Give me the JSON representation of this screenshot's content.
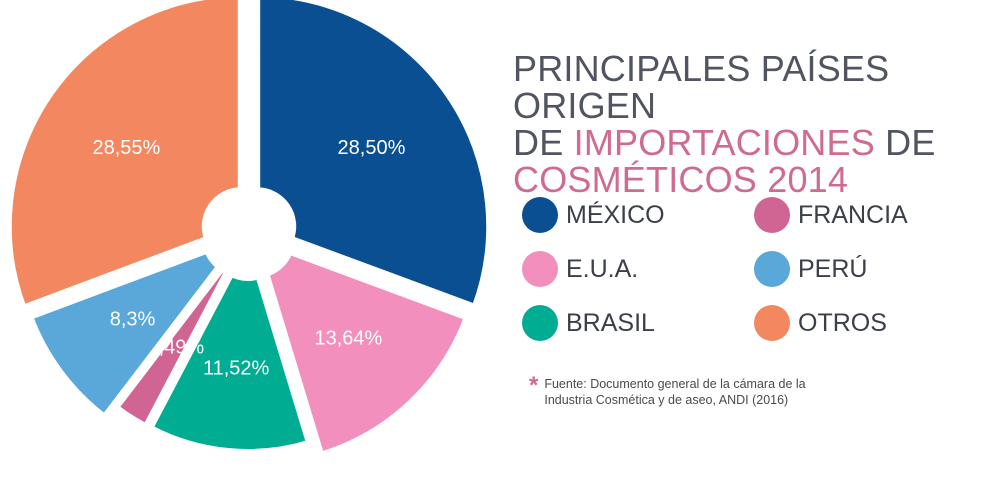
{
  "title": {
    "line1": "PRINCIPALES PAÍSES ORIGEN",
    "line2_prefix": "DE ",
    "line2_highlight": "IMPORTACIONES",
    "line2_suffix": " DE",
    "line3_highlight": "COSMÉTICOS 2014"
  },
  "legend": [
    {
      "label": "MÉXICO",
      "color": "#0b4f93"
    },
    {
      "label": "FRANCIA",
      "color": "#d06493"
    },
    {
      "label": "E.U.A.",
      "color": "#f28fbc"
    },
    {
      "label": "PERÚ",
      "color": "#5aa7da"
    },
    {
      "label": "BRASIL",
      "color": "#00ad93"
    },
    {
      "label": "OTROS",
      "color": "#f3875f"
    }
  ],
  "source": {
    "star": "*",
    "text": "Fuente: Documento general de la cámara de la Industria Cosmética y de aseo, ANDI (2016)"
  },
  "chart_data": {
    "type": "pie",
    "title": "PRINCIPALES PAÍSES ORIGEN DE IMPORTACIONES DE COSMÉTICOS 2014",
    "slices": [
      {
        "name": "MÉXICO",
        "value": 28.5,
        "label": "28,50%",
        "color": "#0b4f93"
      },
      {
        "name": "E.U.A.",
        "value": 13.64,
        "label": "13,64%",
        "color": "#f28fbc"
      },
      {
        "name": "BRASIL",
        "value": 11.52,
        "label": "11,52%",
        "color": "#00ad93"
      },
      {
        "name": "FRANCIA",
        "value": 2.49,
        "label": "2,49%",
        "color": "#d06493"
      },
      {
        "name": "PERÚ",
        "value": 8.3,
        "label": "8,3%",
        "color": "#5aa7da"
      },
      {
        "name": "OTROS",
        "value": 28.55,
        "label": "28,55%",
        "color": "#f3875f"
      }
    ]
  }
}
